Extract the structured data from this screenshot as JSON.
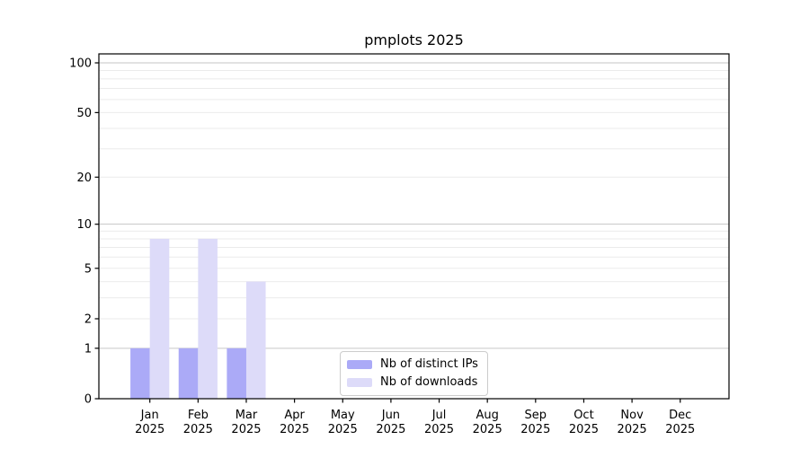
{
  "chart_data": {
    "type": "bar",
    "title": "pmplots 2025",
    "categories": [
      "Jan",
      "Feb",
      "Mar",
      "Apr",
      "May",
      "Jun",
      "Jul",
      "Aug",
      "Sep",
      "Oct",
      "Nov",
      "Dec"
    ],
    "year": "2025",
    "series": [
      {
        "name": "Nb of distinct IPs",
        "color": "#abaaf7",
        "values": [
          1,
          1,
          1,
          0,
          0,
          0,
          0,
          0,
          0,
          0,
          0,
          0
        ]
      },
      {
        "name": "Nb of downloads",
        "color": "#dddbf9",
        "values": [
          8,
          8,
          4,
          0,
          0,
          0,
          0,
          0,
          0,
          0,
          0,
          0
        ]
      }
    ],
    "xlabel": "",
    "ylabel": "",
    "y_axis": {
      "scale": "log1p",
      "ticks": [
        0,
        1,
        2,
        5,
        10,
        20,
        50,
        100
      ],
      "range": [
        0,
        113
      ],
      "major_grid_values": [
        1,
        10,
        100
      ],
      "minor_grid_values": [
        2,
        3,
        4,
        5,
        6,
        7,
        8,
        9,
        20,
        30,
        40,
        50,
        60,
        70,
        80,
        90
      ]
    },
    "legend": {
      "position": "bottom-center-inside",
      "entries": [
        "Nb of distinct IPs",
        "Nb of downloads"
      ]
    },
    "grid": true,
    "colors": {
      "major_grid": "#c6c6c6",
      "minor_grid": "#ebebeb",
      "axis": "#000000",
      "background": "#ffffff",
      "text": "#000000"
    }
  }
}
